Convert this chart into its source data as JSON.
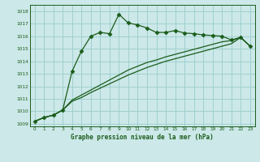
{
  "title": "Graphe pression niveau de la mer (hPa)",
  "bg_color": "#cce8e8",
  "grid_color": "#99cccc",
  "line_color": "#1a5c1a",
  "xlim": [
    -0.5,
    23.5
  ],
  "ylim": [
    1008.8,
    1018.5
  ],
  "yticks": [
    1009,
    1010,
    1011,
    1012,
    1013,
    1014,
    1015,
    1016,
    1017,
    1018
  ],
  "xticks": [
    0,
    1,
    2,
    3,
    4,
    5,
    6,
    7,
    8,
    9,
    10,
    11,
    12,
    13,
    14,
    15,
    16,
    17,
    18,
    19,
    20,
    21,
    22,
    23
  ],
  "series": [
    {
      "x": [
        0,
        1,
        2,
        3,
        4,
        5,
        6,
        7,
        8,
        9,
        10,
        11,
        12,
        13,
        14,
        15,
        16,
        17,
        18,
        19,
        20,
        21,
        22,
        23
      ],
      "y": [
        1009.2,
        1009.5,
        1009.7,
        1010.1,
        1013.2,
        1014.8,
        1016.0,
        1016.3,
        1016.2,
        1017.75,
        1017.05,
        1016.9,
        1016.65,
        1016.3,
        1016.3,
        1016.45,
        1016.25,
        1016.2,
        1016.1,
        1016.05,
        1016.0,
        1015.7,
        1015.9,
        1015.2
      ],
      "marker": "D",
      "markersize": 2.5,
      "linewidth": 0.9
    },
    {
      "x": [
        0,
        1,
        2,
        3,
        4,
        5,
        6,
        7,
        8,
        9,
        10,
        11,
        12,
        13,
        14,
        15,
        16,
        17,
        18,
        19,
        20,
        21,
        22,
        23
      ],
      "y": [
        1009.2,
        1009.5,
        1009.7,
        1010.1,
        1010.9,
        1011.3,
        1011.7,
        1012.1,
        1012.5,
        1012.9,
        1013.3,
        1013.6,
        1013.9,
        1014.1,
        1014.35,
        1014.55,
        1014.75,
        1014.95,
        1015.15,
        1015.35,
        1015.55,
        1015.65,
        1015.9,
        1015.2
      ],
      "marker": null,
      "markersize": 0,
      "linewidth": 0.9
    },
    {
      "x": [
        0,
        1,
        2,
        3,
        4,
        5,
        6,
        7,
        8,
        9,
        10,
        11,
        12,
        13,
        14,
        15,
        16,
        17,
        18,
        19,
        20,
        21,
        22,
        23
      ],
      "y": [
        1009.2,
        1009.5,
        1009.7,
        1010.1,
        1010.8,
        1011.1,
        1011.5,
        1011.85,
        1012.2,
        1012.55,
        1012.9,
        1013.2,
        1013.5,
        1013.75,
        1014.0,
        1014.2,
        1014.4,
        1014.6,
        1014.8,
        1015.0,
        1015.2,
        1015.4,
        1015.9,
        1015.2
      ],
      "marker": null,
      "markersize": 0,
      "linewidth": 0.9
    }
  ]
}
